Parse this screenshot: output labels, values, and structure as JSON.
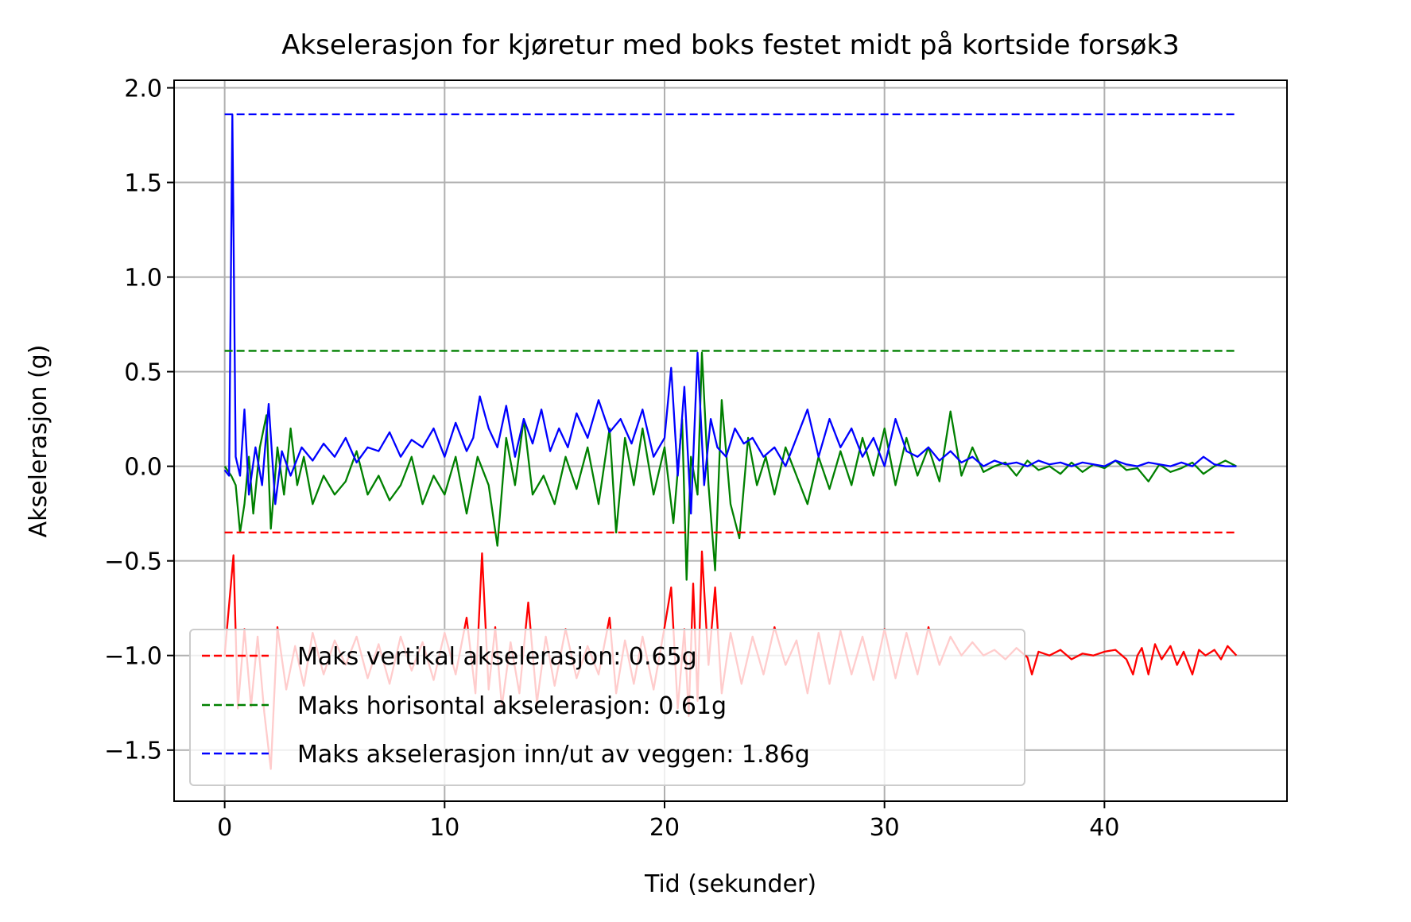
{
  "chart_data": {
    "type": "line",
    "title": "Akselerasjon for kjøretur med boks festet midt på kortside forsøk3",
    "xlabel": "Tid (sekunder)",
    "ylabel": "Akselerasjon (g)",
    "xlim": [
      -2.3,
      48.3
    ],
    "ylim": [
      -1.77,
      2.04
    ],
    "xticks": [
      0,
      10,
      20,
      30,
      40
    ],
    "yticks": [
      -1.5,
      -1.0,
      -0.5,
      0.0,
      0.5,
      1.0,
      1.5,
      2.0
    ],
    "xtick_labels": [
      "0",
      "10",
      "20",
      "30",
      "40"
    ],
    "ytick_labels": [
      "−1.5",
      "−1.0",
      "−0.5",
      "0.0",
      "0.5",
      "1.0",
      "1.5",
      "2.0"
    ],
    "grid": true,
    "legend_position": "lower left",
    "x_range": [
      0,
      46
    ],
    "series": [
      {
        "role": "vertikal",
        "color": "#ff0000",
        "x": [
          0.0,
          0.4,
          0.6,
          0.9,
          1.2,
          1.5,
          1.8,
          2.1,
          2.4,
          2.8,
          3.2,
          3.6,
          4.0,
          4.5,
          5.0,
          5.5,
          6.0,
          6.5,
          7.0,
          7.5,
          8.0,
          8.5,
          9.0,
          9.5,
          10.0,
          10.5,
          11.0,
          11.4,
          11.7,
          12.0,
          12.3,
          12.6,
          13.0,
          13.4,
          13.8,
          14.2,
          14.6,
          15.0,
          15.5,
          16.0,
          16.5,
          17.0,
          17.5,
          17.8,
          18.2,
          18.6,
          19.0,
          19.5,
          20.0,
          20.3,
          20.6,
          20.9,
          21.1,
          21.3,
          21.5,
          21.7,
          22.0,
          22.3,
          22.6,
          23.0,
          23.5,
          24.0,
          24.5,
          25.0,
          25.5,
          26.0,
          26.5,
          27.0,
          27.5,
          28.0,
          28.5,
          29.0,
          29.5,
          30.0,
          30.5,
          31.0,
          31.5,
          32.0,
          32.5,
          33.0,
          33.5,
          34.0,
          34.5,
          35.0,
          35.5,
          36.0,
          36.5,
          36.7,
          37.0,
          37.5,
          38.0,
          38.5,
          39.0,
          39.5,
          40.0,
          40.5,
          41.0,
          41.3,
          41.5,
          41.7,
          42.0,
          42.3,
          42.6,
          43.0,
          43.3,
          43.6,
          44.0,
          44.3,
          44.6,
          45.0,
          45.3,
          45.6,
          46.0
        ],
        "y": [
          -1.0,
          -0.47,
          -1.28,
          -0.86,
          -1.27,
          -0.9,
          -1.3,
          -1.6,
          -0.85,
          -1.18,
          -0.95,
          -1.16,
          -0.88,
          -1.1,
          -0.92,
          -1.05,
          -0.9,
          -1.12,
          -0.94,
          -1.15,
          -0.9,
          -1.08,
          -0.93,
          -1.13,
          -0.88,
          -1.1,
          -0.8,
          -1.2,
          -0.46,
          -1.18,
          -0.85,
          -1.27,
          -0.93,
          -1.2,
          -0.72,
          -1.25,
          -0.9,
          -1.16,
          -0.86,
          -1.12,
          -0.95,
          -1.1,
          -0.8,
          -1.2,
          -0.92,
          -1.15,
          -0.9,
          -1.18,
          -0.85,
          -0.64,
          -1.28,
          -0.86,
          -1.32,
          -0.62,
          -1.24,
          -0.45,
          -1.05,
          -0.64,
          -1.2,
          -0.88,
          -1.15,
          -0.9,
          -1.1,
          -0.85,
          -1.05,
          -0.92,
          -1.2,
          -0.88,
          -1.15,
          -0.87,
          -1.1,
          -0.9,
          -1.13,
          -0.86,
          -1.12,
          -0.88,
          -1.1,
          -0.85,
          -1.05,
          -0.9,
          -1.0,
          -0.93,
          -1.0,
          -0.97,
          -1.02,
          -0.96,
          -1.01,
          -1.1,
          -0.98,
          -1.0,
          -0.97,
          -1.02,
          -0.99,
          -1.0,
          -0.98,
          -0.97,
          -1.02,
          -1.1,
          -1.0,
          -0.96,
          -1.1,
          -0.94,
          -1.02,
          -0.95,
          -1.05,
          -0.98,
          -1.1,
          -0.97,
          -1.0,
          -0.97,
          -1.02,
          -0.95,
          -1.0
        ]
      },
      {
        "role": "horisontal",
        "color": "#008000",
        "x": [
          0.0,
          0.3,
          0.5,
          0.7,
          0.9,
          1.1,
          1.3,
          1.6,
          1.9,
          2.1,
          2.4,
          2.7,
          3.0,
          3.3,
          3.6,
          4.0,
          4.5,
          5.0,
          5.5,
          6.0,
          6.5,
          7.0,
          7.5,
          8.0,
          8.5,
          9.0,
          9.5,
          10.0,
          10.5,
          11.0,
          11.5,
          12.0,
          12.4,
          12.8,
          13.2,
          13.6,
          14.0,
          14.5,
          15.0,
          15.5,
          16.0,
          16.5,
          17.0,
          17.5,
          17.8,
          18.2,
          18.6,
          19.0,
          19.5,
          20.0,
          20.4,
          20.8,
          21.0,
          21.2,
          21.5,
          21.7,
          22.0,
          22.3,
          22.6,
          23.0,
          23.4,
          23.8,
          24.2,
          24.6,
          25.0,
          25.5,
          26.0,
          26.5,
          27.0,
          27.5,
          28.0,
          28.5,
          29.0,
          29.5,
          30.0,
          30.5,
          31.0,
          31.5,
          32.0,
          32.5,
          33.0,
          33.5,
          34.0,
          34.5,
          35.0,
          35.5,
          36.0,
          36.5,
          37.0,
          37.5,
          38.0,
          38.5,
          39.0,
          39.5,
          40.0,
          40.5,
          41.0,
          41.5,
          42.0,
          42.5,
          43.0,
          43.5,
          44.0,
          44.5,
          45.0,
          45.5,
          46.0
        ],
        "y": [
          0.0,
          -0.05,
          -0.1,
          -0.35,
          -0.2,
          0.05,
          -0.25,
          0.1,
          0.27,
          -0.33,
          0.1,
          -0.15,
          0.2,
          -0.1,
          0.05,
          -0.2,
          -0.05,
          -0.15,
          -0.08,
          0.08,
          -0.15,
          -0.05,
          -0.18,
          -0.1,
          0.05,
          -0.2,
          -0.05,
          -0.15,
          0.05,
          -0.25,
          0.05,
          -0.1,
          -0.42,
          0.15,
          -0.1,
          0.25,
          -0.15,
          -0.05,
          -0.2,
          0.05,
          -0.12,
          0.1,
          -0.2,
          0.2,
          -0.35,
          0.15,
          -0.1,
          0.2,
          -0.15,
          0.1,
          -0.3,
          0.25,
          -0.6,
          0.05,
          -0.15,
          0.6,
          -0.1,
          -0.55,
          0.35,
          -0.2,
          -0.38,
          0.15,
          -0.1,
          0.05,
          -0.15,
          0.1,
          -0.05,
          -0.2,
          0.05,
          -0.12,
          0.08,
          -0.1,
          0.15,
          -0.05,
          0.2,
          -0.1,
          0.15,
          -0.05,
          0.1,
          -0.08,
          0.29,
          -0.05,
          0.1,
          -0.03,
          0.0,
          0.02,
          -0.05,
          0.03,
          -0.02,
          0.0,
          -0.04,
          0.02,
          -0.03,
          0.01,
          -0.01,
          0.03,
          -0.02,
          -0.01,
          -0.08,
          0.01,
          -0.03,
          -0.01,
          0.02,
          -0.04,
          0.0,
          0.03,
          0.0
        ]
      },
      {
        "role": "inn/ut",
        "color": "#0000ff",
        "x": [
          0.0,
          0.2,
          0.35,
          0.5,
          0.7,
          0.9,
          1.1,
          1.4,
          1.7,
          2.0,
          2.3,
          2.6,
          3.0,
          3.5,
          4.0,
          4.5,
          5.0,
          5.5,
          6.0,
          6.5,
          7.0,
          7.5,
          8.0,
          8.5,
          9.0,
          9.5,
          10.0,
          10.5,
          11.0,
          11.3,
          11.6,
          12.0,
          12.4,
          12.8,
          13.2,
          13.6,
          14.0,
          14.4,
          14.8,
          15.2,
          15.6,
          16.0,
          16.5,
          17.0,
          17.5,
          18.0,
          18.5,
          19.0,
          19.5,
          20.0,
          20.3,
          20.6,
          20.9,
          21.2,
          21.5,
          21.8,
          22.1,
          22.4,
          22.8,
          23.2,
          23.6,
          24.0,
          24.5,
          25.0,
          25.5,
          26.0,
          26.5,
          27.0,
          27.5,
          28.0,
          28.5,
          29.0,
          29.5,
          30.0,
          30.5,
          31.0,
          31.5,
          32.0,
          32.5,
          33.0,
          33.5,
          34.0,
          34.5,
          35.0,
          35.5,
          36.0,
          36.5,
          37.0,
          37.5,
          38.0,
          38.5,
          39.0,
          39.5,
          40.0,
          40.5,
          41.0,
          41.5,
          42.0,
          42.5,
          43.0,
          43.5,
          44.0,
          44.5,
          45.0,
          45.5,
          46.0
        ],
        "y": [
          -0.02,
          -0.05,
          1.86,
          0.05,
          -0.05,
          0.3,
          -0.15,
          0.1,
          -0.1,
          0.33,
          -0.2,
          0.08,
          -0.05,
          0.1,
          0.03,
          0.12,
          0.05,
          0.15,
          0.02,
          0.1,
          0.08,
          0.18,
          0.05,
          0.14,
          0.1,
          0.2,
          0.05,
          0.23,
          0.08,
          0.15,
          0.37,
          0.2,
          0.1,
          0.32,
          0.05,
          0.25,
          0.12,
          0.3,
          0.08,
          0.2,
          0.1,
          0.28,
          0.15,
          0.35,
          0.18,
          0.25,
          0.12,
          0.3,
          0.05,
          0.15,
          0.52,
          -0.05,
          0.42,
          -0.25,
          0.6,
          -0.1,
          0.25,
          0.1,
          0.05,
          0.2,
          0.12,
          0.15,
          0.05,
          0.1,
          0.0,
          0.15,
          0.3,
          0.05,
          0.25,
          0.1,
          0.2,
          0.05,
          0.15,
          0.0,
          0.25,
          0.08,
          0.05,
          0.1,
          0.03,
          0.08,
          0.02,
          0.05,
          0.0,
          0.03,
          0.01,
          0.02,
          0.0,
          0.03,
          0.01,
          0.02,
          0.0,
          0.02,
          0.01,
          0.0,
          0.03,
          0.01,
          0.0,
          0.02,
          0.01,
          0.0,
          0.02,
          0.0,
          0.05,
          0.01,
          0.0,
          0.0
        ]
      }
    ],
    "reference_lines": [
      {
        "color": "#ff0000",
        "y": -0.35,
        "style": "dashed"
      },
      {
        "color": "#008000",
        "y": 0.61,
        "style": "dashed"
      },
      {
        "color": "#0000ff",
        "y": 1.86,
        "style": "dashed"
      }
    ],
    "legend": [
      {
        "label": "Maks vertikal akselerasjon: 0.65g",
        "color": "#ff0000"
      },
      {
        "label": "Maks horisontal akselerasjon: 0.61g",
        "color": "#008000"
      },
      {
        "label": "Maks akselerasjon inn/ut av veggen: 1.86g",
        "color": "#0000ff"
      }
    ]
  }
}
